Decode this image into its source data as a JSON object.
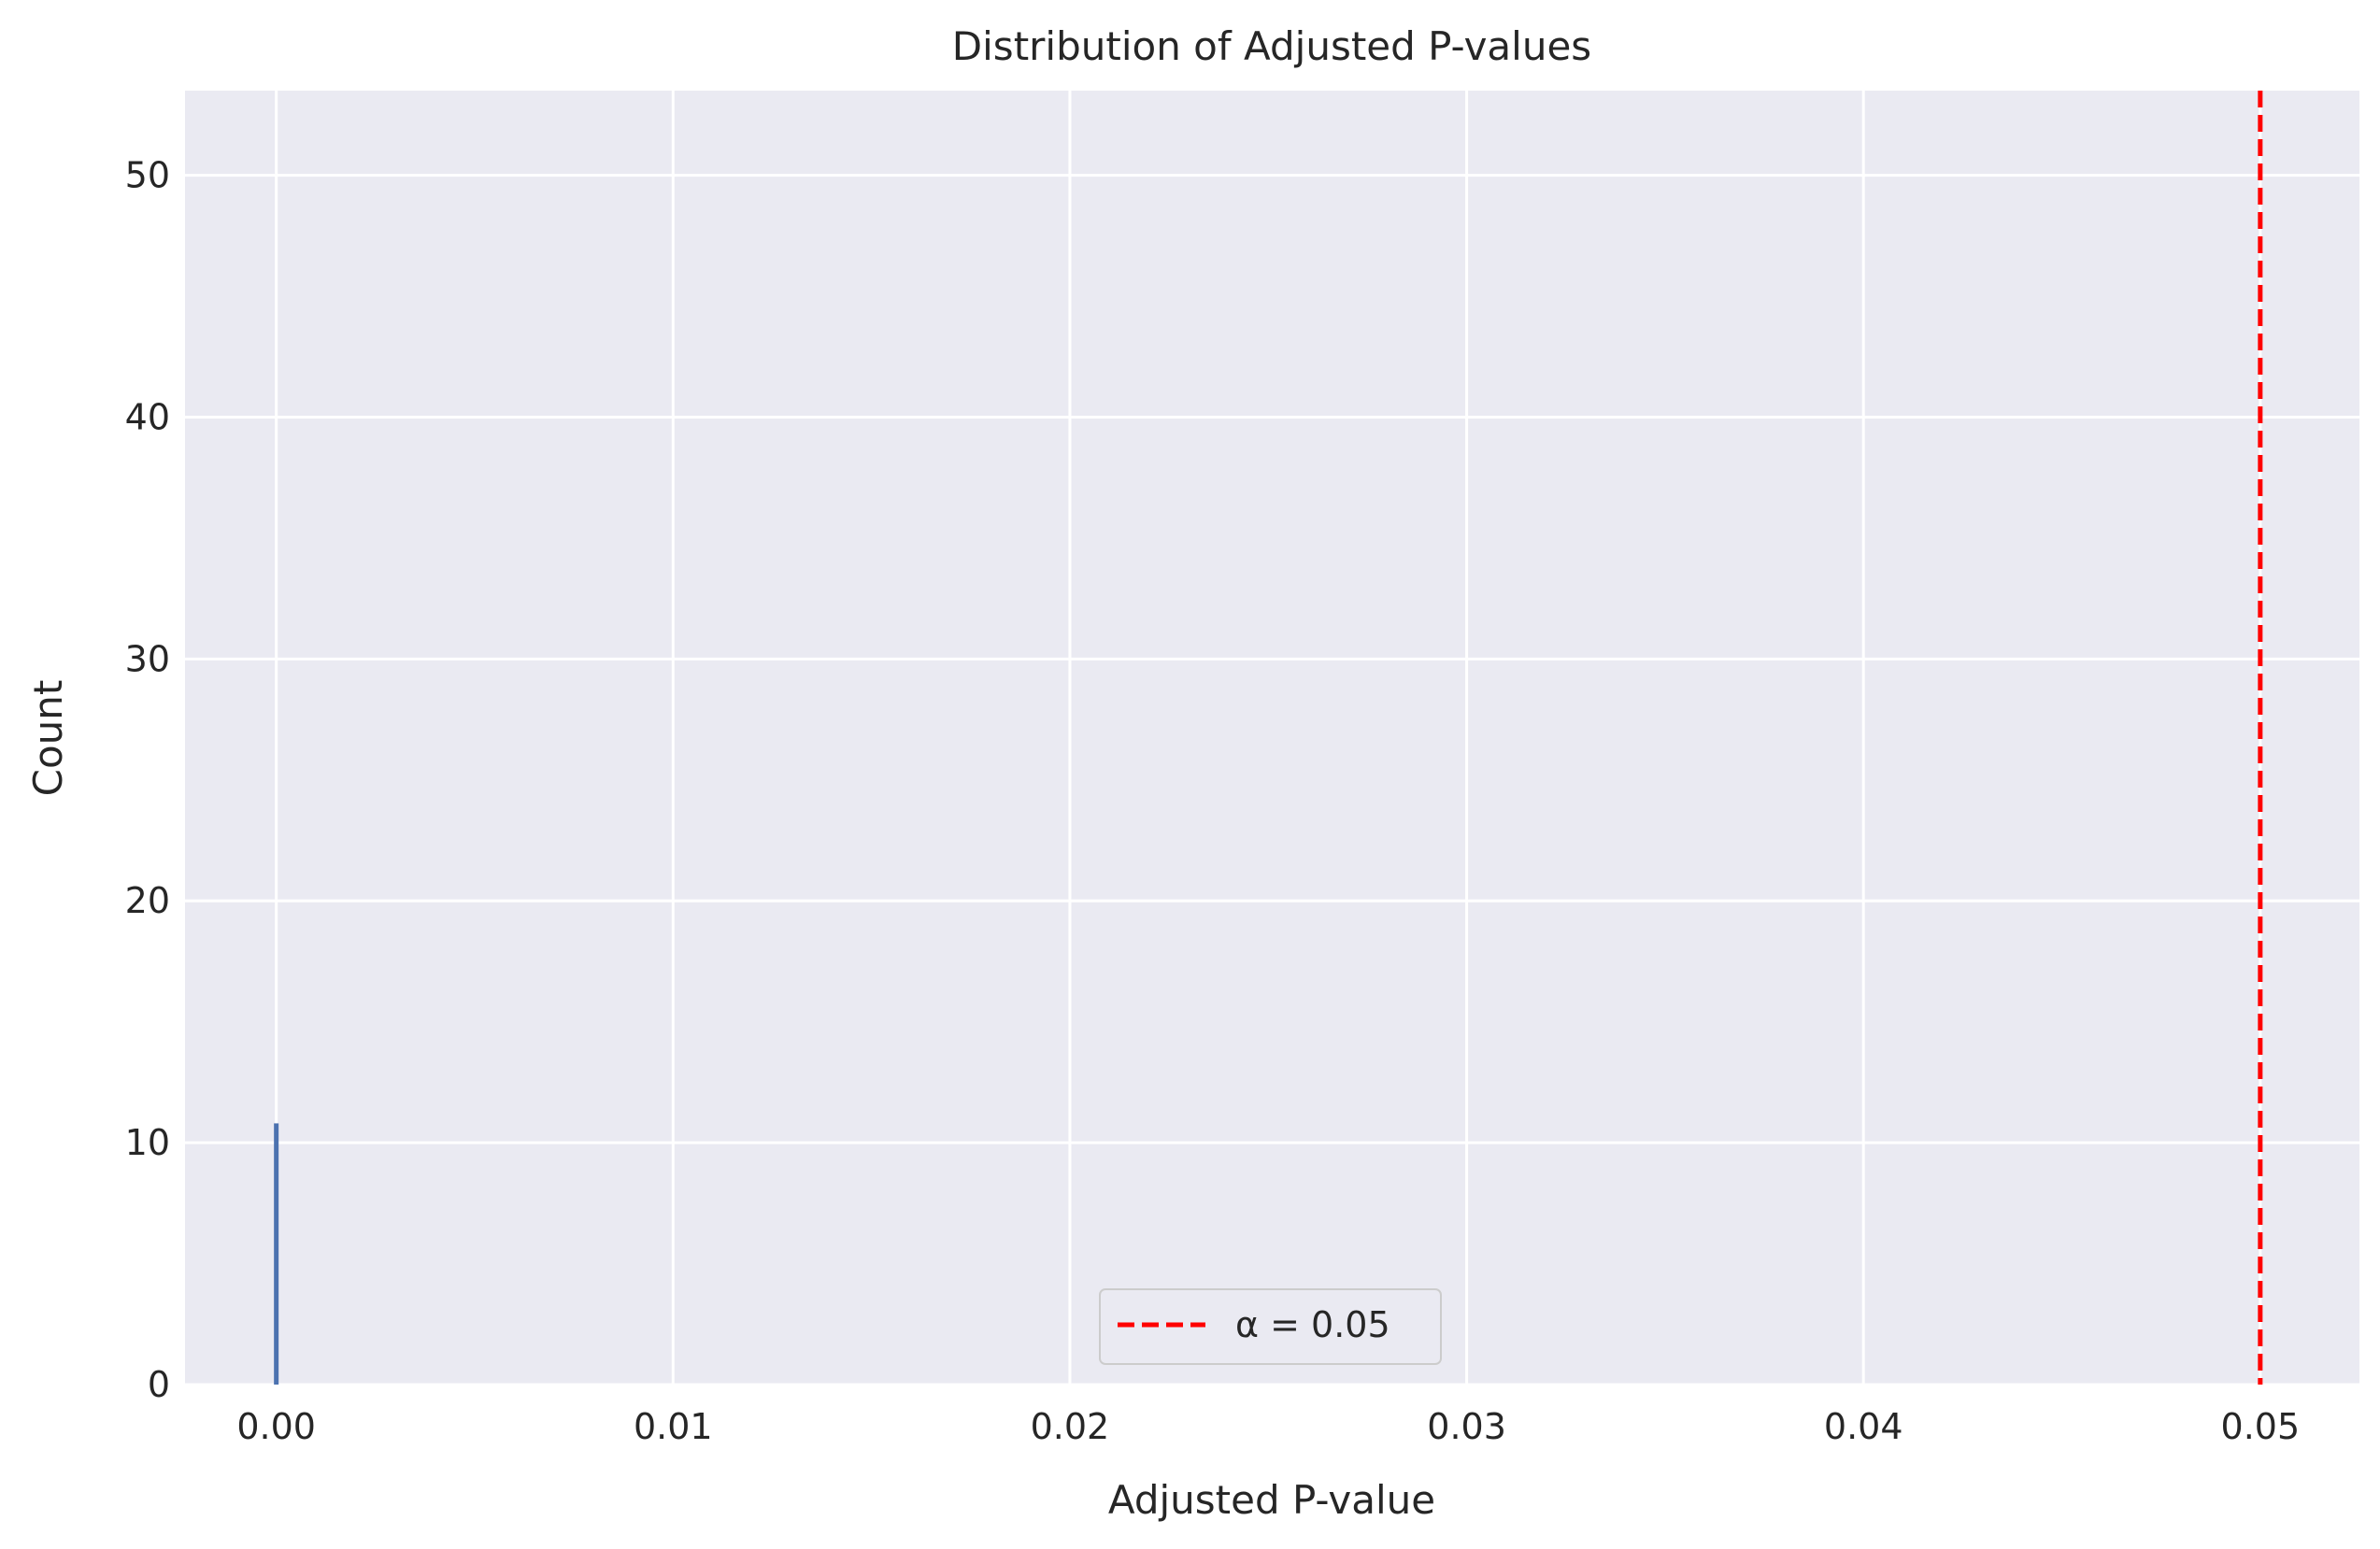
{
  "chart_data": {
    "type": "bar",
    "title": "Distribution of Adjusted P-values",
    "xlabel": "Adjusted P-value",
    "ylabel": "Count",
    "xlim": [
      -0.0023,
      0.0525
    ],
    "ylim": [
      0,
      53.5
    ],
    "xticks": [
      0.0,
      0.01,
      0.02,
      0.03,
      0.04,
      0.05
    ],
    "xtick_labels": [
      "0.00",
      "0.01",
      "0.02",
      "0.03",
      "0.04",
      "0.05"
    ],
    "yticks": [
      0,
      10,
      20,
      30,
      40,
      50
    ],
    "ytick_labels": [
      "0",
      "10",
      "20",
      "30",
      "40",
      "50"
    ],
    "grid": true,
    "bars": [
      {
        "x": 0.0,
        "count": 10.8
      }
    ],
    "threshold": {
      "x": 0.05,
      "label": "α = 0.05",
      "style": "dashed"
    },
    "legend": {
      "position": "lower-center",
      "entries": [
        "α = 0.05"
      ]
    },
    "colors": {
      "bar": "#4c72b0",
      "threshold": "#ff0000",
      "plot_background": "#eaeaf2",
      "grid": "#ffffff"
    }
  }
}
